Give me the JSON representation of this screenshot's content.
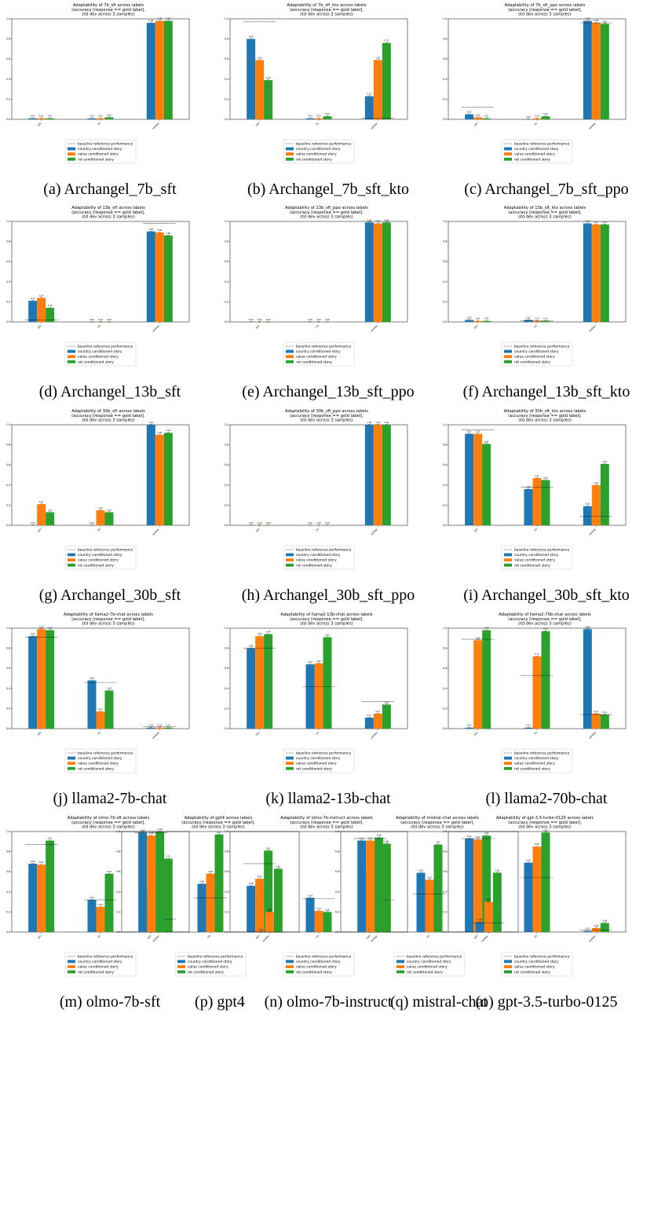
{
  "colors": {
    "country": "#1f77b4",
    "value": "#ff7f0e",
    "rot": "#2ca02c",
    "baseline": "#000000"
  },
  "title_lines_common": [
    "(accuracy [response == gold label],",
    "std dev across 3 samples)"
  ],
  "legend": [
    "baseline reference performance",
    "country conditioned story",
    "value conditioned story",
    "rot conditioned story"
  ],
  "categories": [
    "yes",
    "no",
    "neither"
  ],
  "chart_data": [
    {
      "type": "bar",
      "caption": "(a) Archangel_7b_sft",
      "title": "Adaptability of 7b_sft across labels",
      "ylim": [
        0,
        1
      ],
      "series": [
        {
          "name": "country conditioned story",
          "values": [
            0.01,
            0.01,
            0.96
          ],
          "labels": [
            "0.01",
            "0.01",
            "0.96"
          ]
        },
        {
          "name": "value conditioned story",
          "values": [
            0.01,
            0.01,
            0.98
          ],
          "labels": [
            "0.01",
            "0.01",
            "0.98"
          ]
        },
        {
          "name": "rot conditioned story",
          "values": [
            0.01,
            0.02,
            0.98
          ],
          "labels": [
            "0.01",
            "0.02",
            "0.98"
          ]
        }
      ],
      "baseline": [
        null,
        null,
        null
      ]
    },
    {
      "type": "bar",
      "caption": "(b) Archangel_7b_sft_kto",
      "title": "Adaptability of 7b_sft_kto across labels",
      "ylim": [
        0,
        1
      ],
      "series": [
        {
          "name": "country conditioned story",
          "values": [
            0.8,
            0.01,
            0.23
          ],
          "labels": [
            "0.80",
            "0.01",
            "0.23"
          ]
        },
        {
          "name": "value conditioned story",
          "values": [
            0.59,
            0.01,
            0.59
          ],
          "labels": [
            "0.59",
            "0.01",
            "0.59"
          ]
        },
        {
          "name": "rot conditioned story",
          "values": [
            0.39,
            0.03,
            0.76
          ],
          "labels": [
            "0.39",
            "0.03",
            "0.76"
          ]
        }
      ],
      "baseline": [
        0.97,
        null,
        0.01
      ]
    },
    {
      "type": "bar",
      "caption": "(c) Archangel_7b_sft_ppo",
      "title": "Adaptability of 7b_sft_ppo across labels",
      "ylim": [
        0,
        1
      ],
      "series": [
        {
          "name": "country conditioned story",
          "values": [
            0.05,
            0.0,
            0.98
          ],
          "labels": [
            "0.05",
            "0.00",
            "0.98"
          ]
        },
        {
          "name": "value conditioned story",
          "values": [
            0.02,
            0.01,
            0.96
          ],
          "labels": [
            "0.02",
            "0.01",
            "0.96"
          ]
        },
        {
          "name": "rot conditioned story",
          "values": [
            0.01,
            0.03,
            0.95
          ],
          "labels": [
            "0.01",
            "0.03",
            "0.95"
          ]
        }
      ],
      "baseline": [
        0.12,
        null,
        0.96
      ]
    },
    {
      "type": "bar",
      "caption": "(d) Archangel_13b_sft",
      "title": "Adaptability of 13b_sft across labels",
      "ylim": [
        0,
        1
      ],
      "series": [
        {
          "name": "country conditioned story",
          "values": [
            0.21,
            0.0,
            0.9
          ],
          "labels": [
            "0.21",
            "0.00",
            "0.90"
          ]
        },
        {
          "name": "value conditioned story",
          "values": [
            0.24,
            0.0,
            0.89
          ],
          "labels": [
            "0.24",
            "0.00",
            "0.89"
          ]
        },
        {
          "name": "rot conditioned story",
          "values": [
            0.14,
            0.0,
            0.86
          ],
          "labels": [
            "0.14",
            "0.00",
            "0.86"
          ]
        }
      ],
      "baseline": [
        0.02,
        null,
        0.98
      ]
    },
    {
      "type": "bar",
      "caption": "(e) Archangel_13b_sft_ppo",
      "title": "Adaptability of 13b_sft_ppo across labels",
      "ylim": [
        0,
        1
      ],
      "series": [
        {
          "name": "country conditioned story",
          "values": [
            0.0,
            0.0,
            0.99
          ],
          "labels": [
            "0.00",
            "0.00",
            "0.99"
          ]
        },
        {
          "name": "value conditioned story",
          "values": [
            0.0,
            0.0,
            0.98
          ],
          "labels": [
            "0.00",
            "0.00",
            "0.98"
          ]
        },
        {
          "name": "rot conditioned story",
          "values": [
            0.0,
            0.0,
            0.99
          ],
          "labels": [
            "0.00",
            "0.00",
            "0.99"
          ]
        }
      ],
      "baseline": [
        null,
        null,
        null
      ]
    },
    {
      "type": "bar",
      "caption": "(f) Archangel_13b_sft_kto",
      "title": "Adaptability of 13b_sft_kto across labels",
      "ylim": [
        0,
        1
      ],
      "series": [
        {
          "name": "country conditioned story",
          "values": [
            0.02,
            0.02,
            0.98
          ],
          "labels": [
            "0.02",
            "0.02",
            "0.98"
          ]
        },
        {
          "name": "value conditioned story",
          "values": [
            0.01,
            0.01,
            0.97
          ],
          "labels": [
            "0.01",
            "0.01",
            "0.97"
          ]
        },
        {
          "name": "rot conditioned story",
          "values": [
            0.01,
            0.01,
            0.97
          ],
          "labels": [
            "0.01",
            "0.01",
            "0.97"
          ]
        }
      ],
      "baseline": [
        null,
        0.01,
        null
      ]
    },
    {
      "type": "bar",
      "caption": "(g) Archangel_30b_sft",
      "title": "Adaptability of 30b_sft across labels",
      "ylim": [
        0,
        1
      ],
      "series": [
        {
          "name": "country conditioned story",
          "values": [
            0.0,
            0.0,
            1.0
          ],
          "labels": [
            "0.00",
            "0.00",
            "1.00"
          ]
        },
        {
          "name": "value conditioned story",
          "values": [
            0.21,
            0.15,
            0.9
          ],
          "labels": [
            "0.21",
            "0.15",
            "0.90"
          ]
        },
        {
          "name": "rot conditioned story",
          "values": [
            0.13,
            0.13,
            0.92
          ],
          "labels": [
            "0.13",
            "0.13",
            "0.92"
          ]
        }
      ],
      "baseline": [
        null,
        null,
        null
      ]
    },
    {
      "type": "bar",
      "caption": "(h) Archangel_30b_sft_ppo",
      "title": "Adaptability of 30b_sft_ppo across labels",
      "ylim": [
        0,
        1
      ],
      "series": [
        {
          "name": "country conditioned story",
          "values": [
            0.0,
            0.0,
            1.0
          ],
          "labels": [
            "0.00",
            "0.00",
            "1.00"
          ]
        },
        {
          "name": "value conditioned story",
          "values": [
            0.0,
            0.0,
            1.0
          ],
          "labels": [
            "0.00",
            "0.00",
            "1.00"
          ]
        },
        {
          "name": "rot conditioned story",
          "values": [
            0.0,
            0.0,
            1.0
          ],
          "labels": [
            "0.00",
            "0.00",
            "1.00"
          ]
        }
      ],
      "baseline": [
        null,
        null,
        null
      ]
    },
    {
      "type": "bar",
      "caption": "(i) Archangel_30b_sft_kto",
      "title": "Adaptability of 30b_sft_kto across labels",
      "ylim": [
        0,
        1
      ],
      "series": [
        {
          "name": "country conditioned story",
          "values": [
            0.91,
            0.36,
            0.19
          ],
          "labels": [
            "0.91",
            "0.36",
            "0.19"
          ]
        },
        {
          "name": "value conditioned story",
          "values": [
            0.91,
            0.47,
            0.4
          ],
          "labels": [
            "0.91",
            "0.47",
            "0.40"
          ]
        },
        {
          "name": "rot conditioned story",
          "values": [
            0.81,
            0.45,
            0.61
          ],
          "labels": [
            "0.81",
            "0.45",
            "0.61"
          ]
        }
      ],
      "baseline": [
        0.95,
        0.38,
        0.09
      ]
    },
    {
      "type": "bar",
      "caption": "(j) llama2-7b-chat",
      "title": "Adaptability of llama2-7b-chat across labels",
      "ylim": [
        0,
        1
      ],
      "series": [
        {
          "name": "country conditioned story",
          "values": [
            0.92,
            0.48,
            0.01
          ],
          "labels": [
            "0.92",
            "0.48",
            "0.01"
          ]
        },
        {
          "name": "value conditioned story",
          "values": [
            0.99,
            0.17,
            0.01
          ],
          "labels": [
            "0.99",
            "0.17",
            "0.01"
          ]
        },
        {
          "name": "rot conditioned story",
          "values": [
            0.98,
            0.38,
            0.01
          ],
          "labels": [
            "0.98",
            "0.38",
            "0.01"
          ]
        }
      ],
      "baseline": [
        0.91,
        0.46,
        0.02
      ]
    },
    {
      "type": "bar",
      "caption": "(k) llama2-13b-chat",
      "title": "Adaptability of llama2-13b-chat across labels",
      "ylim": [
        0,
        1
      ],
      "series": [
        {
          "name": "country conditioned story",
          "values": [
            0.8,
            0.64,
            0.11
          ],
          "labels": [
            "0.80",
            "0.64",
            "0.11"
          ]
        },
        {
          "name": "value conditioned story",
          "values": [
            0.92,
            0.65,
            0.15
          ],
          "labels": [
            "0.92",
            "0.65",
            "0.15"
          ]
        },
        {
          "name": "rot conditioned story",
          "values": [
            0.94,
            0.91,
            0.24
          ],
          "labels": [
            "0.94",
            "0.91",
            "0.24"
          ]
        }
      ],
      "baseline": [
        0.8,
        0.42,
        0.27
      ]
    },
    {
      "type": "bar",
      "caption": "(l) llama2-70b-chat",
      "title": "Adaptability of llama2-70b-chat across labels",
      "ylim": [
        0,
        1
      ],
      "series": [
        {
          "name": "country conditioned story",
          "values": [
            0.01,
            0.01,
            0.99
          ],
          "labels": [
            "0.01",
            "0.01",
            "0.99"
          ]
        },
        {
          "name": "value conditioned story",
          "values": [
            0.88,
            0.72,
            0.15
          ],
          "labels": [
            "0.88",
            "0.72",
            "0.15"
          ]
        },
        {
          "name": "rot conditioned story",
          "values": [
            0.98,
            0.97,
            0.14
          ],
          "labels": [
            "0.98",
            "0.97",
            "0.14"
          ]
        }
      ],
      "baseline": [
        0.89,
        0.53,
        0.14
      ]
    },
    {
      "type": "bar",
      "caption": "(m) olmo-7b-sft",
      "title": "Adaptability of olmo-7b-sft across labels",
      "ylim": [
        0,
        1
      ],
      "series": [
        {
          "name": "country conditioned story",
          "values": [
            0.68,
            0.32,
            0.4
          ],
          "labels": [
            "0.68",
            "0.32",
            "0.40"
          ]
        },
        {
          "name": "value conditioned story",
          "values": [
            0.67,
            0.25,
            0.69
          ],
          "labels": [
            "0.67",
            "0.25",
            "0.69"
          ]
        },
        {
          "name": "rot conditioned story",
          "values": [
            0.91,
            0.58,
            0.73
          ],
          "labels": [
            "0.91",
            "0.58",
            "0.73"
          ]
        }
      ],
      "baseline": [
        0.87,
        0.32,
        0.13
      ]
    },
    {
      "type": "bar",
      "caption": "(n) olmo-7b-instruct",
      "title": "Adaptability of olmo-7b-instruct across labels",
      "ylim": [
        0,
        1
      ],
      "series": [
        {
          "name": "country conditioned story",
          "values": [
            0.46,
            0.34,
            0.6
          ],
          "labels": [
            "0.46",
            "0.34",
            "0.60"
          ]
        },
        {
          "name": "value conditioned story",
          "values": [
            0.53,
            0.21,
            0.81
          ],
          "labels": [
            "0.53",
            "0.21",
            "0.81"
          ]
        },
        {
          "name": "rot conditioned story",
          "values": [
            0.81,
            0.2,
            0.88
          ],
          "labels": [
            "0.81",
            "0.20",
            "0.88"
          ]
        }
      ],
      "baseline": [
        0.68,
        0.33,
        0.32
      ]
    },
    {
      "type": "bar",
      "caption": "(o) gpt-3.5-turbo-0125",
      "title": "Adaptability of gpt-3.5-turbo-0125 across labels",
      "ylim": [
        0,
        1
      ],
      "series": [
        {
          "name": "country conditioned story",
          "values": [
            0.93,
            0.69,
            0.01
          ],
          "labels": [
            "0.93",
            "0.69",
            "0.01"
          ]
        },
        {
          "name": "value conditioned story",
          "values": [
            0.92,
            0.85,
            0.04
          ],
          "labels": [
            "0.92",
            "0.85",
            "0.04"
          ]
        },
        {
          "name": "rot conditioned story",
          "values": [
            0.96,
            0.99,
            0.09
          ],
          "labels": [
            "0.96",
            "0.99",
            "0.09"
          ]
        }
      ],
      "baseline": [
        0.93,
        0.54,
        0.02
      ]
    },
    {
      "type": "bar",
      "caption": "(p) gpt4",
      "title": "Adaptability of gpt4 across labels",
      "ylim": [
        0,
        1
      ],
      "series": [
        {
          "name": "country conditioned story",
          "values": [
            0.99,
            0.48,
            0.0
          ],
          "labels": [
            "0.99",
            "0.48",
            "0.00"
          ]
        },
        {
          "name": "value conditioned story",
          "values": [
            0.96,
            0.58,
            0.2
          ],
          "labels": [
            "0.96",
            "0.58",
            "0.20"
          ]
        },
        {
          "name": "rot conditioned story",
          "values": [
            1.0,
            0.97,
            0.63
          ],
          "labels": [
            "1.00",
            "0.97",
            "0.63"
          ]
        }
      ],
      "baseline": [
        0.99,
        0.34,
        0.0
      ]
    },
    {
      "type": "bar",
      "caption": "(q) mistral-chat",
      "title": "Adaptability of mistral-chat across labels",
      "ylim": [
        0,
        1
      ],
      "series": [
        {
          "name": "country conditioned story",
          "values": [
            0.91,
            0.59,
            0.1
          ],
          "labels": [
            "0.91",
            "0.59",
            "0.10"
          ]
        },
        {
          "name": "value conditioned story",
          "values": [
            0.91,
            0.52,
            0.3
          ],
          "labels": [
            "0.91",
            "0.52",
            "0.30"
          ]
        },
        {
          "name": "rot conditioned story",
          "values": [
            0.94,
            0.87,
            0.59
          ],
          "labels": [
            "0.94",
            "0.87",
            "0.59"
          ]
        }
      ],
      "baseline": [
        0.93,
        0.38,
        0.09
      ]
    }
  ]
}
